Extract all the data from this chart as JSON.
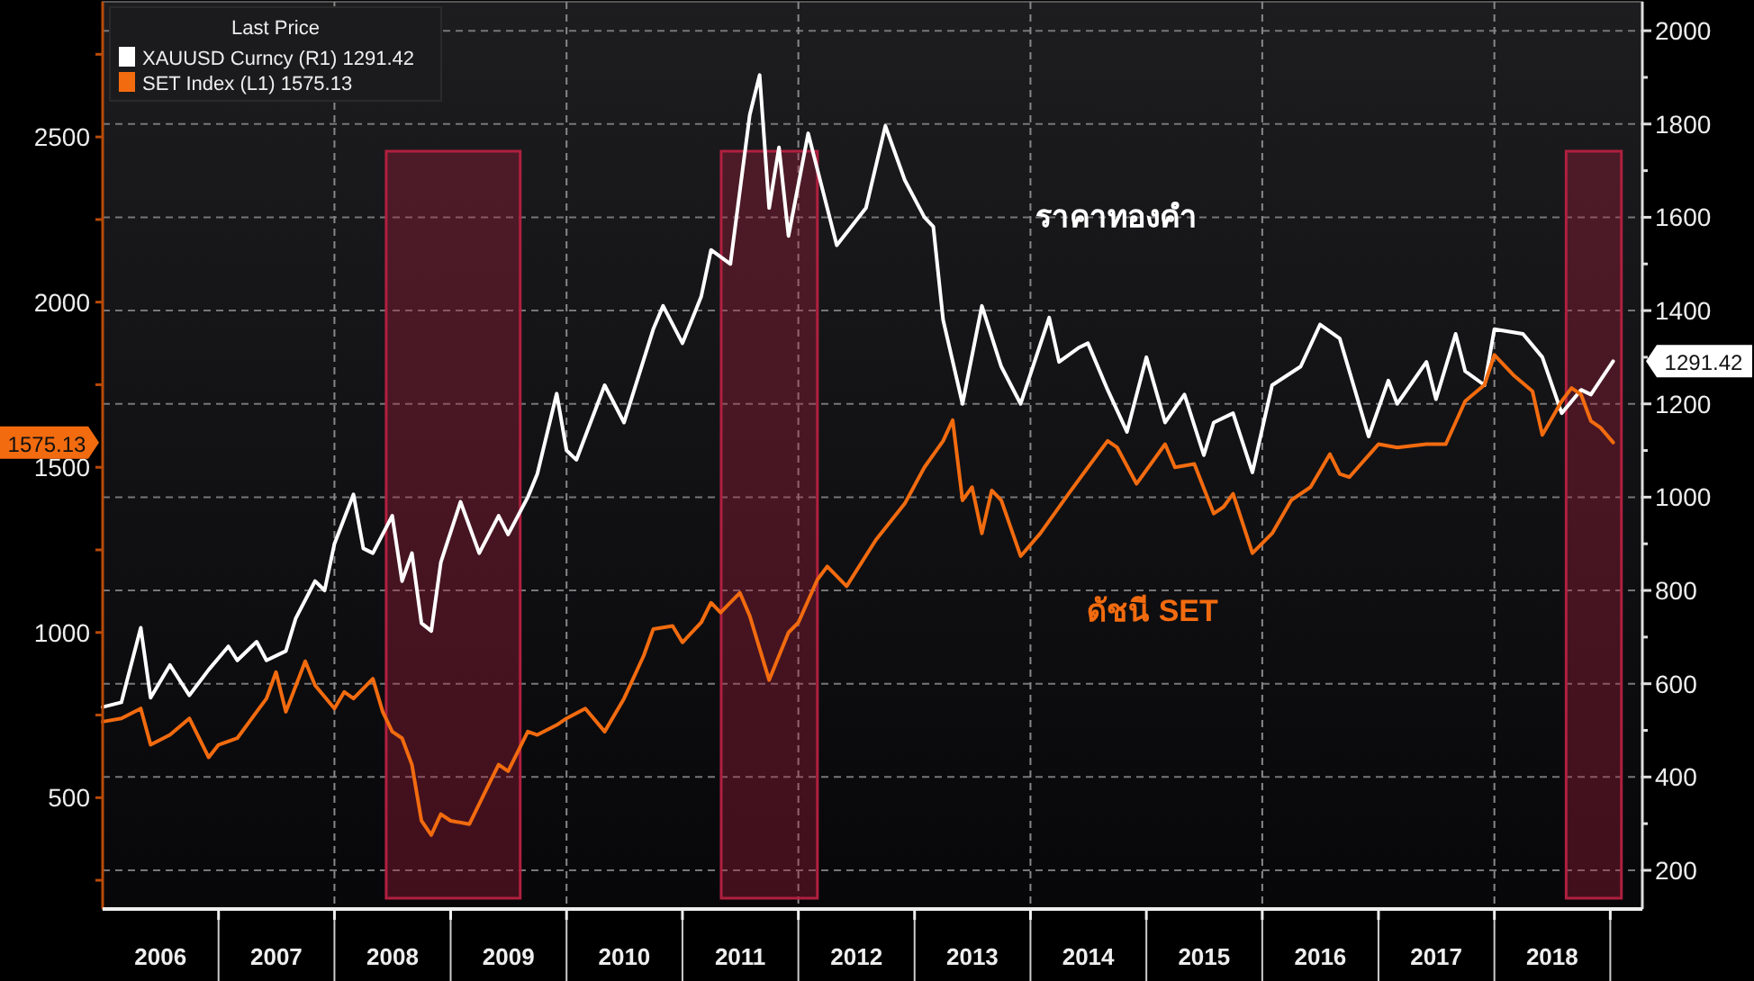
{
  "chart_data": {
    "type": "line",
    "legend": "top left",
    "legend_title": "Last Price",
    "grid": true,
    "xlim": [
      "2006-01-01",
      "2019-04-12"
    ],
    "xticks": [
      {
        "value": "2006-07-02",
        "label": "2006"
      },
      {
        "value": "2007-01-01",
        "label": null
      },
      {
        "value": "2007-07-02",
        "label": "2007"
      },
      {
        "value": "2008-01-01",
        "label": null
      },
      {
        "value": "2008-07-02",
        "label": "2008"
      },
      {
        "value": "2009-01-01",
        "label": null
      },
      {
        "value": "2009-07-02",
        "label": "2009"
      },
      {
        "value": "2010-01-01",
        "label": null
      },
      {
        "value": "2010-07-02",
        "label": "2010"
      },
      {
        "value": "2011-01-01",
        "label": null
      },
      {
        "value": "2011-07-02",
        "label": "2011"
      },
      {
        "value": "2012-01-01",
        "label": null
      },
      {
        "value": "2012-07-02",
        "label": "2012"
      },
      {
        "value": "2013-01-01",
        "label": null
      },
      {
        "value": "2013-07-02",
        "label": "2013"
      },
      {
        "value": "2014-01-01",
        "label": null
      },
      {
        "value": "2014-07-02",
        "label": "2014"
      },
      {
        "value": "2015-01-01",
        "label": null
      },
      {
        "value": "2015-07-02",
        "label": "2015"
      },
      {
        "value": "2016-01-01",
        "label": null
      },
      {
        "value": "2016-07-02",
        "label": "2016"
      },
      {
        "value": "2017-01-01",
        "label": null
      },
      {
        "value": "2017-07-02",
        "label": "2017"
      },
      {
        "value": "2018-01-01",
        "label": null
      },
      {
        "value": "2018-07-02",
        "label": "2018"
      },
      {
        "value": "2019-01-01",
        "label": null
      }
    ],
    "ylim": [
      163,
      2909
    ],
    "yticks": [
      {
        "value": 250,
        "label": null
      },
      500,
      {
        "value": 750,
        "label": null
      },
      1000,
      {
        "value": 1250,
        "label": null
      },
      1500,
      {
        "value": 1750,
        "label": null
      },
      2000,
      {
        "value": 2250,
        "label": null
      },
      2500,
      {
        "value": 2750,
        "label": null
      }
    ],
    "y2lim": [
      117,
      2062
    ],
    "y2ticks": [
      200,
      {
        "value": 300,
        "label": null
      },
      400,
      {
        "value": 500,
        "label": null
      },
      600,
      {
        "value": 700,
        "label": null
      },
      800,
      {
        "value": 900,
        "label": null
      },
      1000,
      {
        "value": 1100,
        "label": null
      },
      1200,
      {
        "value": 1300,
        "label": null
      },
      1400,
      {
        "value": 1500,
        "label": null
      },
      1600,
      {
        "value": 1700,
        "label": null
      },
      1800,
      {
        "value": 1900,
        "label": null
      },
      2000
    ],
    "series": [
      {
        "name": "XAUUSD Curncy (R1) 1291.42",
        "color": "#ffffff",
        "axis": "y2",
        "x": [
          "2006-01",
          "2006-03",
          "2006-05",
          "2006-06",
          "2006-08",
          "2006-10",
          "2006-12",
          "2007-02",
          "2007-03",
          "2007-05",
          "2007-06",
          "2007-08",
          "2007-09",
          "2007-11",
          "2007-12",
          "2008-01",
          "2008-03",
          "2008-04",
          "2008-05",
          "2008-07",
          "2008-08",
          "2008-09",
          "2008-10",
          "2008-11",
          "2008-12",
          "2009-02",
          "2009-04",
          "2009-06",
          "2009-07",
          "2009-09",
          "2009-10",
          "2009-12",
          "2010-01",
          "2010-02",
          "2010-05",
          "2010-07",
          "2010-10",
          "2010-11",
          "2011-01",
          "2011-03",
          "2011-04",
          "2011-06",
          "2011-08",
          "2011-09",
          "2011-10",
          "2011-11",
          "2011-12",
          "2012-02",
          "2012-05",
          "2012-08",
          "2012-10",
          "2012-12",
          "2013-02",
          "2013-03",
          "2013-04",
          "2013-06",
          "2013-08",
          "2013-10",
          "2013-12",
          "2014-03",
          "2014-04",
          "2014-06",
          "2014-07",
          "2014-09",
          "2014-11",
          "2015-01",
          "2015-03",
          "2015-05",
          "2015-07",
          "2015-08",
          "2015-10",
          "2015-12",
          "2016-02",
          "2016-05",
          "2016-07",
          "2016-09",
          "2016-12",
          "2017-02",
          "2017-03",
          "2017-06",
          "2017-07",
          "2017-09",
          "2017-10",
          "2017-12",
          "2018-01",
          "2018-04",
          "2018-06",
          "2018-08",
          "2018-10",
          "2018-11",
          "2019-01-10"
        ],
        "values": [
          550,
          560,
          720,
          570,
          640,
          575,
          630,
          680,
          650,
          690,
          650,
          670,
          740,
          820,
          800,
          900,
          1006,
          890,
          880,
          960,
          820,
          880,
          730,
          713,
          860,
          990,
          880,
          960,
          920,
          1000,
          1050,
          1222,
          1100,
          1080,
          1240,
          1160,
          1360,
          1410,
          1330,
          1430,
          1530,
          1500,
          1820,
          1905,
          1620,
          1750,
          1560,
          1780,
          1540,
          1620,
          1796,
          1680,
          1600,
          1580,
          1380,
          1200,
          1410,
          1280,
          1200,
          1385,
          1290,
          1320,
          1330,
          1230,
          1140,
          1300,
          1160,
          1220,
          1090,
          1160,
          1180,
          1053,
          1240,
          1280,
          1370,
          1340,
          1130,
          1250,
          1200,
          1290,
          1210,
          1350,
          1270,
          1240,
          1360,
          1350,
          1300,
          1180,
          1230,
          1220,
          1291.42
        ]
      },
      {
        "name": "SET Index (L1) 1575.13",
        "color": "#f26b0f",
        "x": [
          "2006-01",
          "2006-03",
          "2006-05",
          "2006-06",
          "2006-08",
          "2006-10",
          "2006-12",
          "2007-01",
          "2007-03",
          "2007-05",
          "2007-06",
          "2007-07",
          "2007-08",
          "2007-10",
          "2007-11",
          "2008-01",
          "2008-02",
          "2008-03",
          "2008-05",
          "2008-06",
          "2008-07",
          "2008-08",
          "2008-09",
          "2008-10",
          "2008-11",
          "2008-12",
          "2009-01",
          "2009-03",
          "2009-05",
          "2009-06",
          "2009-07",
          "2009-09",
          "2009-10",
          "2009-12",
          "2010-01",
          "2010-03",
          "2010-05",
          "2010-07",
          "2010-09",
          "2010-10",
          "2010-12",
          "2011-01",
          "2011-03",
          "2011-04",
          "2011-05",
          "2011-07",
          "2011-08",
          "2011-10",
          "2011-12",
          "2012-01",
          "2012-03",
          "2012-04",
          "2012-06",
          "2012-09",
          "2012-12",
          "2013-02",
          "2013-04",
          "2013-05",
          "2013-06",
          "2013-07",
          "2013-08",
          "2013-09",
          "2013-10",
          "2013-12",
          "2014-02",
          "2014-05",
          "2014-07",
          "2014-09",
          "2014-10",
          "2014-12",
          "2015-03",
          "2015-04",
          "2015-06",
          "2015-08",
          "2015-09",
          "2015-10",
          "2015-12",
          "2016-02",
          "2016-04",
          "2016-06",
          "2016-08",
          "2016-09",
          "2016-10",
          "2017-01",
          "2017-03",
          "2017-06",
          "2017-08",
          "2017-10",
          "2017-12",
          "2018-01",
          "2018-03",
          "2018-05",
          "2018-06",
          "2018-08",
          "2018-09",
          "2018-10",
          "2018-11",
          "2018-12",
          "2019-01-10"
        ],
        "values": [
          730,
          740,
          770,
          660,
          690,
          740,
          622,
          660,
          680,
          760,
          800,
          880,
          760,
          913,
          840,
          770,
          820,
          800,
          860,
          760,
          700,
          680,
          600,
          430,
          387,
          450,
          430,
          420,
          540,
          600,
          580,
          700,
          690,
          720,
          740,
          770,
          700,
          800,
          930,
          1010,
          1020,
          970,
          1030,
          1090,
          1060,
          1120,
          1050,
          856,
          1000,
          1030,
          1160,
          1200,
          1140,
          1280,
          1390,
          1500,
          1580,
          1643,
          1400,
          1440,
          1300,
          1430,
          1400,
          1231,
          1300,
          1420,
          1500,
          1580,
          1560,
          1450,
          1570,
          1500,
          1510,
          1360,
          1380,
          1420,
          1240,
          1300,
          1400,
          1440,
          1540,
          1480,
          1470,
          1570,
          1560,
          1570,
          1570,
          1700,
          1750,
          1840,
          1780,
          1730,
          1598,
          1700,
          1740,
          1720,
          1640,
          1620,
          1575.13
        ]
      }
    ],
    "bands": [
      {
        "axis": "x",
        "from": "2008-06-12",
        "to": "2009-08-08",
        "color": "#b0203f"
      },
      {
        "axis": "x",
        "from": "2011-05-03",
        "to": "2012-03-01",
        "color": "#b0203f"
      },
      {
        "axis": "x",
        "from": "2018-08-15",
        "to": "2019-02-05",
        "color": "#b0203f"
      }
    ],
    "annotations": [
      "ราคาทองคำ",
      "ดัชนี SET",
      "1575.13",
      "1291.42"
    ]
  }
}
